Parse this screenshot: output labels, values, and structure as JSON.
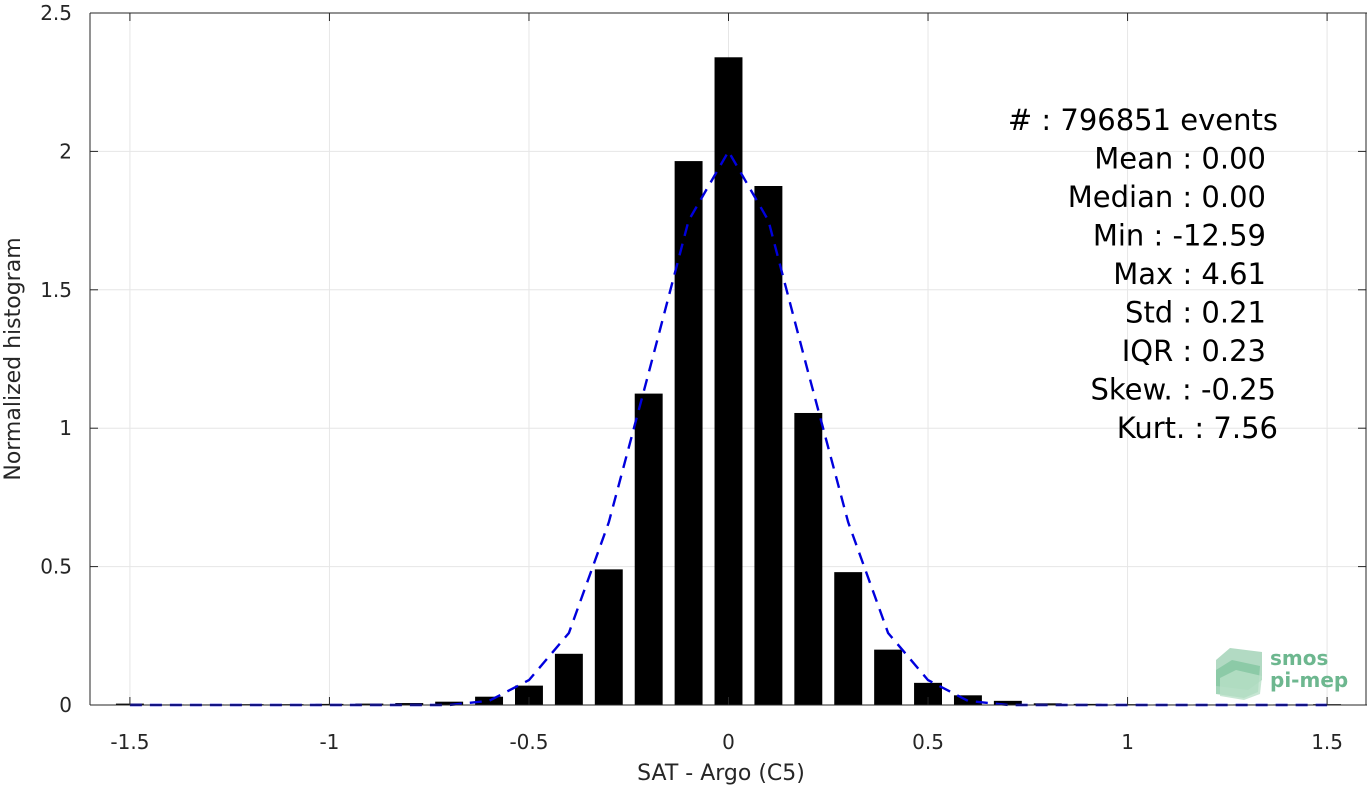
{
  "chart_data": {
    "type": "bar",
    "xlabel": "SAT - Argo (C5)",
    "ylabel": "Normalized histogram",
    "xlim": [
      -1.6,
      1.6
    ],
    "ylim": [
      0,
      2.5
    ],
    "grid": true,
    "x_ticks": [
      -1.5,
      -1,
      -0.5,
      0,
      0.5,
      1,
      1.5
    ],
    "x_tick_labels": [
      "-1.5",
      "-1",
      "-0.5",
      "0",
      "0.5",
      "1",
      "1.5"
    ],
    "y_ticks": [
      0,
      0.5,
      1,
      1.5,
      2,
      2.5
    ],
    "y_tick_labels": [
      "0",
      "0.5",
      "1",
      "1.5",
      "2",
      "2.5"
    ],
    "bar_width": 0.07,
    "x": [
      -1.5,
      -1.4,
      -1.3,
      -1.2,
      -1.1,
      -1.0,
      -0.9,
      -0.8,
      -0.7,
      -0.6,
      -0.5,
      -0.4,
      -0.3,
      -0.2,
      -0.1,
      0.0,
      0.1,
      0.2,
      0.3,
      0.4,
      0.5,
      0.6,
      0.7,
      0.8,
      0.9,
      1.0,
      1.1,
      1.2,
      1.3,
      1.4,
      1.5
    ],
    "values": [
      0.005,
      0.002,
      0.002,
      0.003,
      0.003,
      0.004,
      0.005,
      0.007,
      0.012,
      0.03,
      0.07,
      0.185,
      0.49,
      1.125,
      1.965,
      2.34,
      1.875,
      1.055,
      0.48,
      0.2,
      0.08,
      0.035,
      0.015,
      0.006,
      0.004,
      0.003,
      0.002,
      0.002,
      0.002,
      0.002,
      0.003
    ],
    "fit_curve": {
      "style": "dashed",
      "color": "#0000dd",
      "x": [
        -1.5,
        -1.4,
        -1.3,
        -1.2,
        -1.1,
        -1.0,
        -0.9,
        -0.8,
        -0.7,
        -0.6,
        -0.5,
        -0.4,
        -0.3,
        -0.2,
        -0.1,
        0.0,
        0.1,
        0.2,
        0.3,
        0.4,
        0.5,
        0.6,
        0.7,
        0.8,
        0.9,
        1.0,
        1.1,
        1.2,
        1.3,
        1.4,
        1.5
      ],
      "y": [
        0.0,
        0.0,
        0.0,
        0.0,
        0.0,
        0.0,
        0.0,
        0.0,
        0.0,
        0.015,
        0.09,
        0.26,
        0.66,
        1.2,
        1.75,
        2.0,
        1.75,
        1.2,
        0.66,
        0.26,
        0.09,
        0.015,
        0.0,
        0.0,
        0.0,
        0.0,
        0.0,
        0.0,
        0.0,
        0.0,
        0.0
      ]
    },
    "bar_color": "#000000",
    "grid_color": "#e6e6e6"
  },
  "stats_box": {
    "lines": [
      "#  : 796851 events",
      "Mean : 0.00",
      "Median : 0.00",
      "Min : -12.59",
      "Max : 4.61",
      "Std : 0.21",
      "IQR : 0.23",
      "Skew. : -0.25",
      "Kurt. : 7.56"
    ]
  },
  "logo": {
    "line1": "smos",
    "line2": "pi-mep",
    "color": "#6db78f"
  }
}
